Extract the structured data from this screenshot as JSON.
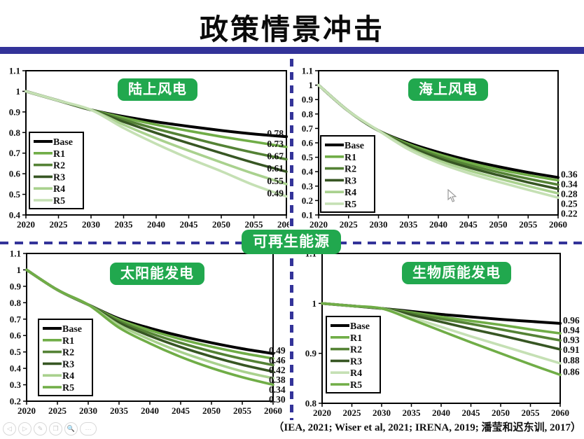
{
  "slide": {
    "title": "政策情景冲击",
    "center_badge": "可再生能源",
    "citation": "（IEA, 2021; Wiser et al, 2021; IRENA, 2019; 潘莹和迟东训, 2017）",
    "accent_blue": "#333399",
    "badge_green": "#21a84e"
  },
  "toolbar": {
    "icons": [
      {
        "name": "previous-slide",
        "glyph": "◁"
      },
      {
        "name": "next-slide",
        "glyph": "▷"
      },
      {
        "name": "pen",
        "glyph": "✎"
      },
      {
        "name": "slides-panel",
        "glyph": "❐"
      },
      {
        "name": "magnifier",
        "glyph": "🔍"
      },
      {
        "name": "more",
        "glyph": "···"
      }
    ]
  },
  "chart_data": [
    {
      "type": "line",
      "title": "陆上风电",
      "x": [
        2020,
        2025,
        2030,
        2035,
        2040,
        2045,
        2050,
        2055,
        2060
      ],
      "xticks": [
        "2020",
        "2025",
        "2030",
        "2035",
        "2040",
        "2045",
        "2050",
        "2055",
        "2060"
      ],
      "xlim": [
        2020,
        2060
      ],
      "ylim": [
        0.4,
        1.1
      ],
      "yticks": [
        "1.1",
        "1",
        "0.9",
        "0.8",
        "0.7",
        "0.6",
        "0.5",
        "0.4"
      ],
      "grid": false,
      "legend_position": "left-middle",
      "series": [
        {
          "name": "Base",
          "color": "#000000",
          "width": 4,
          "end_label": "0.78",
          "values": [
            1.0,
            0.955,
            0.91,
            0.878,
            0.852,
            0.83,
            0.81,
            0.793,
            0.78
          ]
        },
        {
          "name": "R1",
          "color": "#70AD47",
          "width": 3.6,
          "end_label": "0.73",
          "values": [
            1.0,
            0.955,
            0.91,
            0.872,
            0.838,
            0.808,
            0.78,
            0.755,
            0.73
          ]
        },
        {
          "name": "R2",
          "color": "#548235",
          "width": 3.6,
          "end_label": "0.67",
          "values": [
            1.0,
            0.955,
            0.91,
            0.862,
            0.818,
            0.778,
            0.738,
            0.702,
            0.67
          ]
        },
        {
          "name": "R3",
          "color": "#375623",
          "width": 3.6,
          "end_label": "0.61",
          "values": [
            1.0,
            0.955,
            0.91,
            0.852,
            0.798,
            0.748,
            0.7,
            0.653,
            0.61
          ]
        },
        {
          "name": "R4",
          "color": "#A9D18E",
          "width": 3.6,
          "end_label": "0.55",
          "values": [
            1.0,
            0.955,
            0.91,
            0.838,
            0.772,
            0.712,
            0.655,
            0.6,
            0.55
          ]
        },
        {
          "name": "R5",
          "color": "#C5E0B4",
          "width": 3.6,
          "end_label": "0.49",
          "values": [
            1.0,
            0.955,
            0.91,
            0.822,
            0.745,
            0.675,
            0.612,
            0.545,
            0.49
          ]
        }
      ]
    },
    {
      "type": "line",
      "title": "海上风电",
      "x": [
        2020,
        2025,
        2030,
        2035,
        2040,
        2045,
        2050,
        2055,
        2060
      ],
      "xticks": [
        "2020",
        "2025",
        "2030",
        "2035",
        "2040",
        "2045",
        "2050",
        "2055",
        "2060"
      ],
      "xlim": [
        2020,
        2060
      ],
      "ylim": [
        0.1,
        1.1
      ],
      "yticks": [
        "1.1",
        "1",
        "0.9",
        "0.8",
        "0.7",
        "0.6",
        "0.5",
        "0.4",
        "0.3",
        "0.2",
        "0.1"
      ],
      "grid": false,
      "legend_position": "left-middle",
      "series": [
        {
          "name": "Base",
          "color": "#000000",
          "width": 4,
          "end_label": "0.36",
          "values": [
            1.0,
            0.82,
            0.685,
            0.6,
            0.535,
            0.48,
            0.435,
            0.395,
            0.36
          ]
        },
        {
          "name": "R1",
          "color": "#70AD47",
          "width": 3.6,
          "end_label": "0.34",
          "values": [
            1.0,
            0.82,
            0.685,
            0.592,
            0.522,
            0.464,
            0.416,
            0.376,
            0.34
          ]
        },
        {
          "name": "R2",
          "color": "#548235",
          "width": 3.6,
          "end_label": "",
          "values": [
            1.0,
            0.82,
            0.685,
            0.584,
            0.508,
            0.447,
            0.396,
            0.351,
            0.31
          ]
        },
        {
          "name": "R3",
          "color": "#375623",
          "width": 3.6,
          "end_label": "0.28",
          "values": [
            1.0,
            0.82,
            0.685,
            0.576,
            0.494,
            0.43,
            0.376,
            0.326,
            0.28
          ]
        },
        {
          "name": "R4",
          "color": "#A9D18E",
          "width": 3.6,
          "end_label": "0.25",
          "values": [
            1.0,
            0.82,
            0.685,
            0.565,
            0.478,
            0.41,
            0.353,
            0.3,
            0.25
          ]
        },
        {
          "name": "R5",
          "color": "#C5E0B4",
          "width": 3.6,
          "end_label": "0.22",
          "values": [
            1.0,
            0.82,
            0.685,
            0.555,
            0.462,
            0.39,
            0.33,
            0.274,
            0.22
          ]
        }
      ]
    },
    {
      "type": "line",
      "title": "太阳能发电",
      "x": [
        2020,
        2025,
        2030,
        2035,
        2040,
        2045,
        2050,
        2055,
        2060
      ],
      "xticks": [
        "2020",
        "2025",
        "2030",
        "2035",
        "2040",
        "2045",
        "2050",
        "2055",
        "2060"
      ],
      "xlim": [
        2020,
        2060
      ],
      "ylim": [
        0.2,
        1.1
      ],
      "yticks": [
        "1.1",
        "1",
        "0.9",
        "0.8",
        "0.7",
        "0.6",
        "0.5",
        "0.4",
        "0.3",
        "0.2"
      ],
      "grid": false,
      "legend_position": "left-middle",
      "series": [
        {
          "name": "Base",
          "color": "#000000",
          "width": 4,
          "end_label": "0.49",
          "values": [
            1.0,
            0.878,
            0.788,
            0.703,
            0.645,
            0.597,
            0.556,
            0.52,
            0.49
          ]
        },
        {
          "name": "R1",
          "color": "#70AD47",
          "width": 3.6,
          "end_label": "0.46",
          "values": [
            1.0,
            0.878,
            0.788,
            0.697,
            0.632,
            0.578,
            0.532,
            0.493,
            0.46
          ]
        },
        {
          "name": "R2",
          "color": "#548235",
          "width": 3.6,
          "end_label": "0.42",
          "values": [
            1.0,
            0.878,
            0.788,
            0.688,
            0.615,
            0.555,
            0.503,
            0.458,
            0.42
          ]
        },
        {
          "name": "R3",
          "color": "#375623",
          "width": 3.6,
          "end_label": "0.38",
          "values": [
            1.0,
            0.878,
            0.788,
            0.678,
            0.598,
            0.53,
            0.472,
            0.422,
            0.38
          ]
        },
        {
          "name": "R4",
          "color": "#A9D18E",
          "width": 3.6,
          "end_label": "0.34",
          "values": [
            1.0,
            0.878,
            0.788,
            0.664,
            0.576,
            0.5,
            0.437,
            0.382,
            0.34
          ]
        },
        {
          "name": "R5",
          "color": "#70AD47",
          "width": 3.6,
          "end_label": "0.30",
          "values": [
            1.0,
            0.878,
            0.788,
            0.648,
            0.552,
            0.47,
            0.402,
            0.346,
            0.3
          ]
        }
      ]
    },
    {
      "type": "line",
      "title": "生物质能发电",
      "x": [
        2020,
        2025,
        2030,
        2035,
        2040,
        2045,
        2050,
        2055,
        2060
      ],
      "xticks": [
        "2020",
        "2025",
        "2030",
        "2035",
        "2040",
        "2045",
        "2050",
        "2055",
        "2060"
      ],
      "xlim": [
        2020,
        2060
      ],
      "ylim": [
        0.8,
        1.1
      ],
      "yticks": [
        "1.1",
        "1",
        "0.9",
        "0.8"
      ],
      "grid": false,
      "legend_position": "left-middle",
      "series": [
        {
          "name": "Base",
          "color": "#000000",
          "width": 4,
          "end_label": "0.96",
          "values": [
            1.0,
            0.995,
            0.99,
            0.984,
            0.978,
            0.973,
            0.968,
            0.964,
            0.96
          ]
        },
        {
          "name": "R1",
          "color": "#70AD47",
          "width": 3.6,
          "end_label": "0.94",
          "values": [
            1.0,
            0.995,
            0.99,
            0.982,
            0.973,
            0.965,
            0.957,
            0.948,
            0.94
          ]
        },
        {
          "name": "R2",
          "color": "#548235",
          "width": 3.6,
          "end_label": "0.93",
          "values": [
            1.0,
            0.995,
            0.99,
            0.98,
            0.969,
            0.959,
            0.948,
            0.937,
            0.926
          ]
        },
        {
          "name": "R3",
          "color": "#375623",
          "width": 3.6,
          "end_label": "0.91",
          "values": [
            1.0,
            0.995,
            0.99,
            0.977,
            0.963,
            0.949,
            0.936,
            0.922,
            0.908
          ]
        },
        {
          "name": "R4",
          "color": "#C5E0B4",
          "width": 3.6,
          "end_label": "0.88",
          "values": [
            1.0,
            0.995,
            0.99,
            0.972,
            0.953,
            0.934,
            0.916,
            0.898,
            0.88
          ]
        },
        {
          "name": "R5",
          "color": "#70AD47",
          "width": 3.6,
          "end_label": "0.86",
          "values": [
            1.0,
            0.995,
            0.99,
            0.968,
            0.945,
            0.922,
            0.9,
            0.878,
            0.857
          ]
        }
      ]
    }
  ]
}
